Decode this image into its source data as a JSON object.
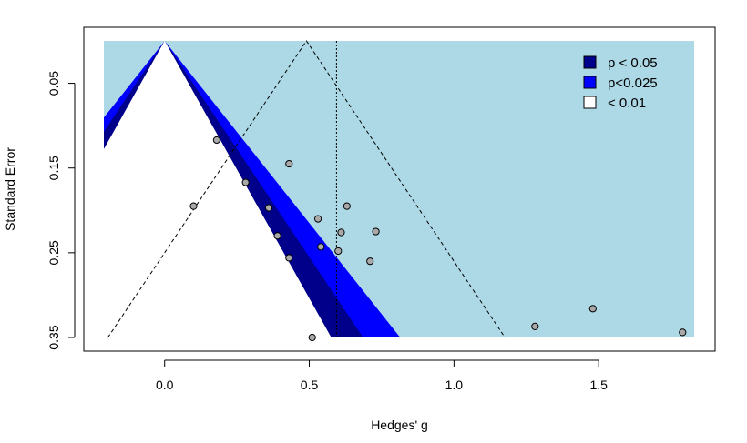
{
  "chart_data": {
    "type": "scatter",
    "plot_kind": "contour-enhanced funnel plot",
    "xlabel": "Hedges' g",
    "ylabel": "Standard Error",
    "x_ticks": [
      "0.0",
      "0.5",
      "1.0",
      "1.5"
    ],
    "x_tick_values": [
      0.0,
      0.5,
      1.0,
      1.5
    ],
    "y_ticks": [
      "0.05",
      "0.15",
      "0.25",
      "0.35"
    ],
    "y_tick_values": [
      0.05,
      0.15,
      0.25,
      0.35
    ],
    "xlim": [
      -0.21,
      1.83
    ],
    "ylim": [
      0.35,
      0.0
    ],
    "y_reversed": true,
    "summary_estimate": 0.594,
    "funnel_apex": 0.49,
    "contour_apex": 0.0,
    "z_values": {
      "p < 0.05": 1.645,
      "p<0.025": 1.96,
      "< 0.01": 2.326
    },
    "colors": {
      "p < 0.05": "#00008b",
      "p<0.025": "#0000ff",
      "< 0.01": "#add8e6",
      "background": "#ffffff",
      "points": "#a9a9a9"
    },
    "legend_position": "top-right",
    "legend": [
      {
        "label": "p < 0.05",
        "color": "#00008b"
      },
      {
        "label": "p<0.025",
        "color": "#0000ff"
      },
      {
        "label": "< 0.01",
        "color": "#ffffff"
      }
    ],
    "points": [
      {
        "x": 0.1,
        "y": 0.195
      },
      {
        "x": 0.18,
        "y": 0.117
      },
      {
        "x": 0.28,
        "y": 0.167
      },
      {
        "x": 0.36,
        "y": 0.197
      },
      {
        "x": 0.39,
        "y": 0.23
      },
      {
        "x": 0.43,
        "y": 0.256
      },
      {
        "x": 0.43,
        "y": 0.145
      },
      {
        "x": 0.51,
        "y": 0.35
      },
      {
        "x": 0.53,
        "y": 0.21
      },
      {
        "x": 0.54,
        "y": 0.243
      },
      {
        "x": 0.6,
        "y": 0.248
      },
      {
        "x": 0.61,
        "y": 0.226
      },
      {
        "x": 0.63,
        "y": 0.195
      },
      {
        "x": 0.71,
        "y": 0.26
      },
      {
        "x": 0.73,
        "y": 0.225
      },
      {
        "x": 1.28,
        "y": 0.337
      },
      {
        "x": 1.48,
        "y": 0.316
      },
      {
        "x": 1.79,
        "y": 0.344
      }
    ]
  }
}
